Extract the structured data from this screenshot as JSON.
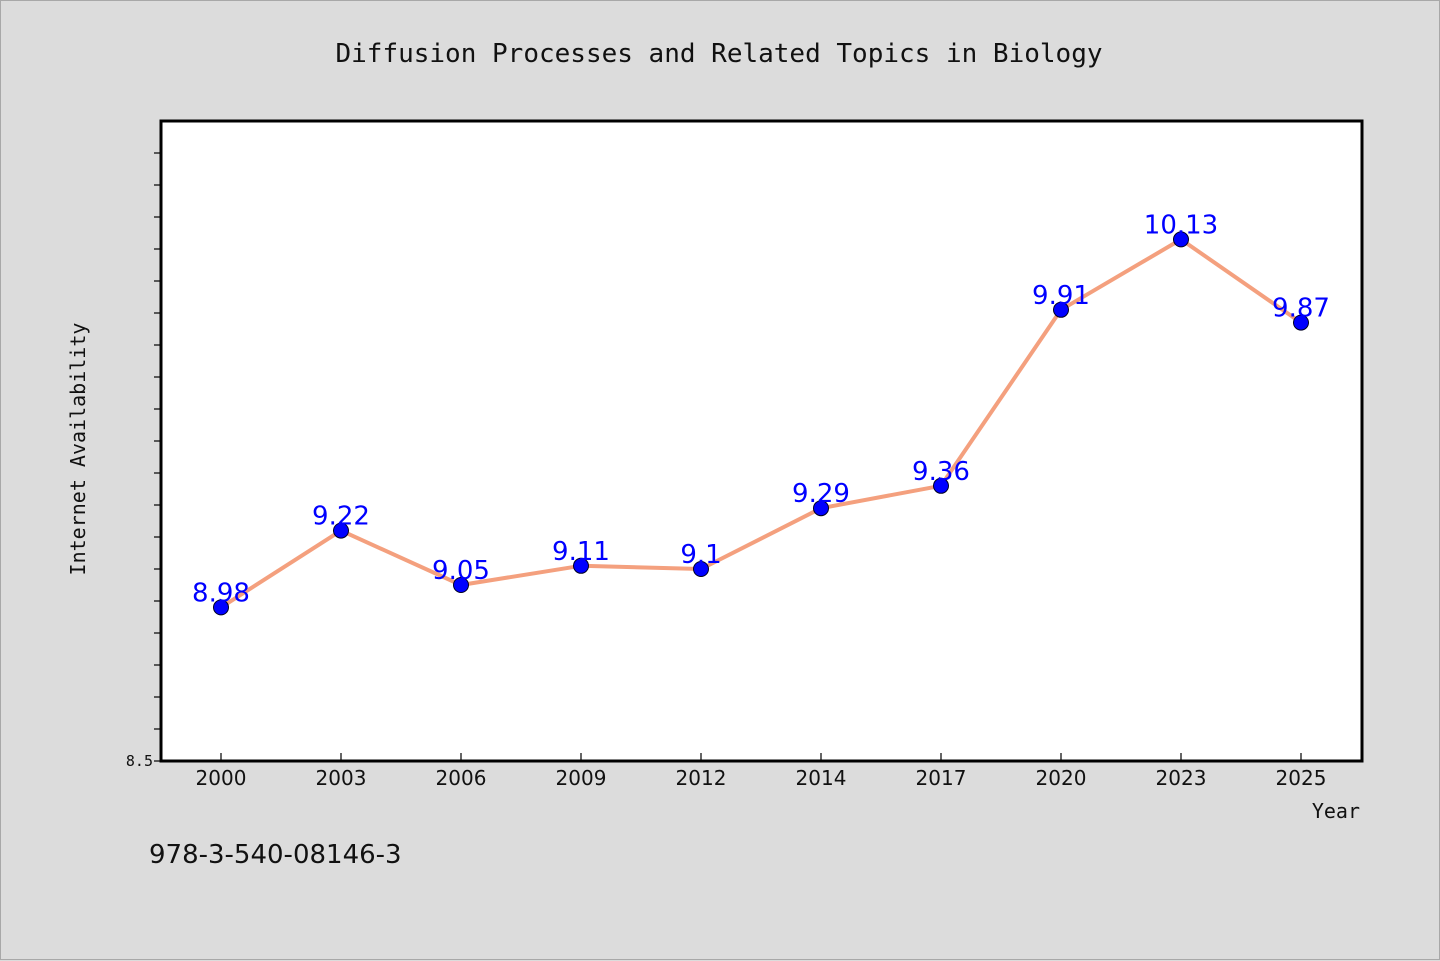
{
  "chart_data": {
    "type": "line",
    "title": "Diffusion Processes and Related Topics in Biology",
    "xlabel": "Year",
    "ylabel": "Internet Availability",
    "categories": [
      "2000",
      "2003",
      "2006",
      "2009",
      "2012",
      "2014",
      "2017",
      "2020",
      "2023",
      "2025"
    ],
    "series": [
      {
        "values": [
          8.98,
          9.22,
          9.05,
          9.11,
          9.1,
          9.29,
          9.36,
          9.91,
          10.13,
          9.87
        ],
        "labels": [
          "8.98",
          "9.22",
          "9.05",
          "9.11",
          "9.1",
          "9.29",
          "9.36",
          "9.91",
          "10.13",
          "9.87"
        ]
      }
    ],
    "ylim": [
      8.5,
      10.5
    ],
    "yticks_labeled": [
      "8.5"
    ],
    "grid": false,
    "legend": "none",
    "colors": {
      "line": "#f4a07e",
      "marker": "#0000ff",
      "label": "#0000ff",
      "background": "#dcdcdc",
      "plot_background": "#ffffff"
    }
  },
  "footer": {
    "isbn": "978-3-540-08146-3"
  }
}
